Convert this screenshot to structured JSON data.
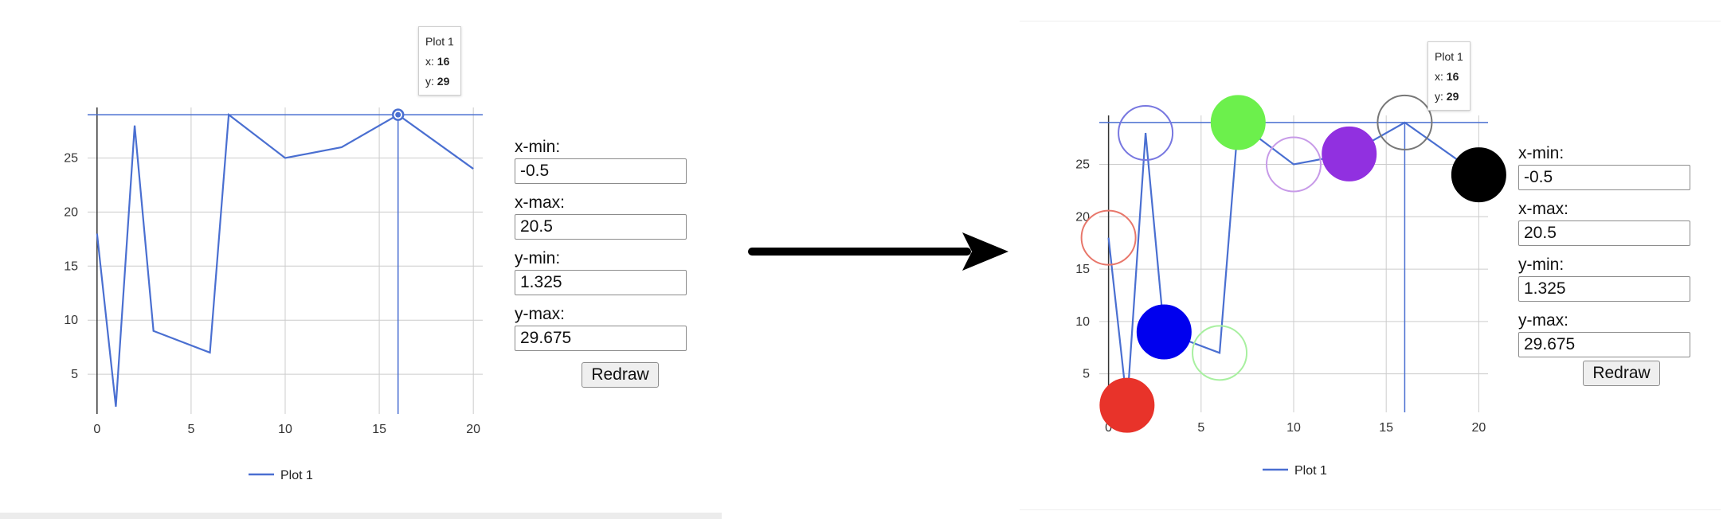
{
  "chart_data": [
    {
      "type": "line",
      "panel": "before",
      "series": [
        {
          "name": "Plot 1",
          "x": [
            0,
            1,
            2,
            3,
            6,
            7,
            10,
            13,
            16,
            20
          ],
          "y": [
            18,
            2,
            28,
            9,
            7,
            29,
            25,
            26,
            29,
            24
          ],
          "color": "#4a6fd1"
        }
      ],
      "xlim": [
        -0.5,
        20.5
      ],
      "ylim": [
        1.325,
        29.675
      ],
      "x_ticks": [
        0,
        5,
        10,
        15,
        20
      ],
      "y_ticks": [
        5,
        10,
        15,
        20,
        25
      ],
      "grid": true,
      "legend": "bottom-center",
      "tooltip": {
        "series": "Plot 1",
        "x": "16",
        "y": "29"
      },
      "highlight_point": {
        "x": 16,
        "y": 29
      }
    },
    {
      "type": "line",
      "panel": "after",
      "series": [
        {
          "name": "Plot 1",
          "x": [
            0,
            1,
            2,
            3,
            6,
            7,
            10,
            13,
            16,
            20
          ],
          "y": [
            18,
            2,
            28,
            9,
            7,
            29,
            25,
            26,
            29,
            24
          ],
          "color": "#4a6fd1"
        }
      ],
      "xlim": [
        -0.5,
        20.5
      ],
      "ylim": [
        1.325,
        29.675
      ],
      "x_ticks": [
        0,
        5,
        10,
        15,
        20
      ],
      "y_ticks": [
        5,
        10,
        15,
        20,
        25
      ],
      "grid": true,
      "legend": "bottom-center",
      "tooltip": {
        "series": "Plot 1",
        "x": "16",
        "y": "29"
      },
      "markers": [
        {
          "x": 0,
          "y": 18,
          "color": "#e8776b",
          "filled": false
        },
        {
          "x": 1,
          "y": 2,
          "color": "#e8332a",
          "filled": true
        },
        {
          "x": 2,
          "y": 28,
          "color": "#7777e0",
          "filled": false
        },
        {
          "x": 3,
          "y": 9,
          "color": "#0000ee",
          "filled": true
        },
        {
          "x": 6,
          "y": 7,
          "color": "#a8f0a0",
          "filled": false
        },
        {
          "x": 7,
          "y": 29,
          "color": "#6cf04c",
          "filled": true
        },
        {
          "x": 10,
          "y": 25,
          "color": "#c79ae8",
          "filled": false
        },
        {
          "x": 13,
          "y": 26,
          "color": "#9130e0",
          "filled": true
        },
        {
          "x": 16,
          "y": 29,
          "color": "#777777",
          "filled": false
        },
        {
          "x": 20,
          "y": 24,
          "color": "#000000",
          "filled": true
        }
      ]
    }
  ],
  "controls": {
    "xmin_label": "x-min:",
    "xmin_value": "-0.5",
    "xmax_label": "x-max:",
    "xmax_value": "20.5",
    "ymin_label": "y-min:",
    "ymin_value": "1.325",
    "ymax_label": "y-max:",
    "ymax_value": "29.675",
    "redraw_label": "Redraw"
  },
  "tooltip_labels": {
    "x_prefix": "x: ",
    "y_prefix": "y: "
  },
  "colors": {
    "line": "#4a6fd1",
    "grid": "#cccccc",
    "axis": "#333333",
    "arrow": "#000000"
  }
}
